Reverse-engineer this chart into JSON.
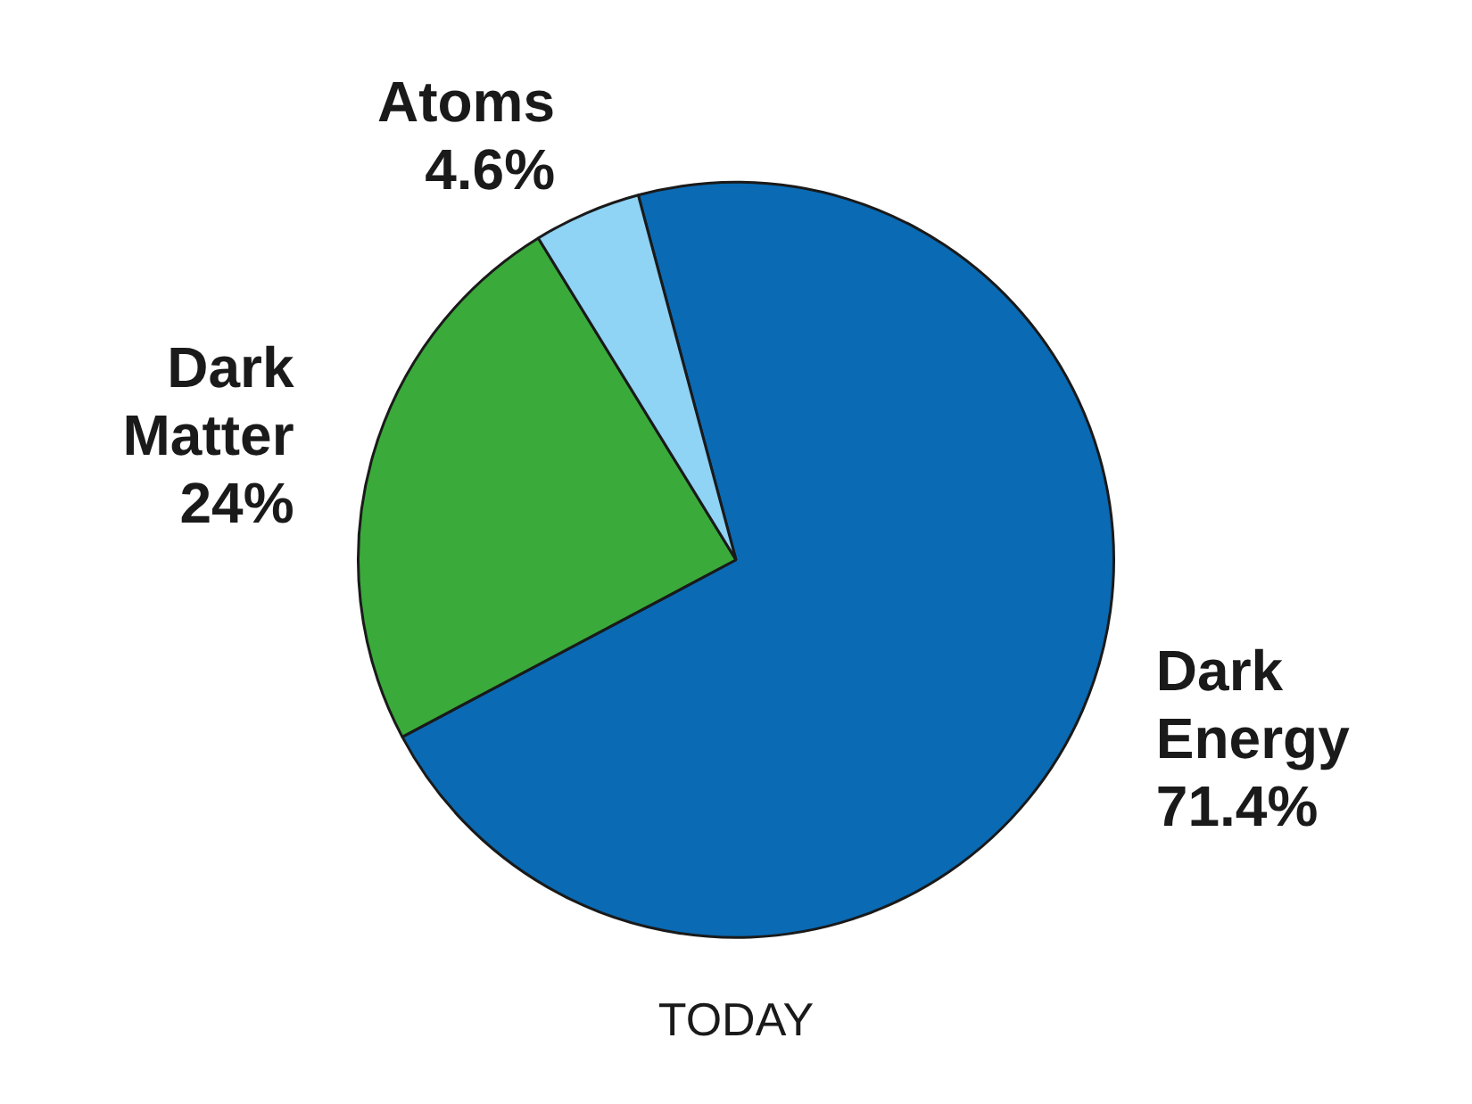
{
  "chart_data": {
    "type": "pie",
    "title": "TODAY",
    "categories": [
      "Dark Energy",
      "Dark Matter",
      "Atoms"
    ],
    "values": [
      71.4,
      24,
      4.6
    ],
    "colors": [
      "#0a6ab3",
      "#3aaa3a",
      "#8fd3f5"
    ],
    "value_labels": [
      "71.4%",
      "24%",
      "4.6%"
    ],
    "legend": false
  }
}
